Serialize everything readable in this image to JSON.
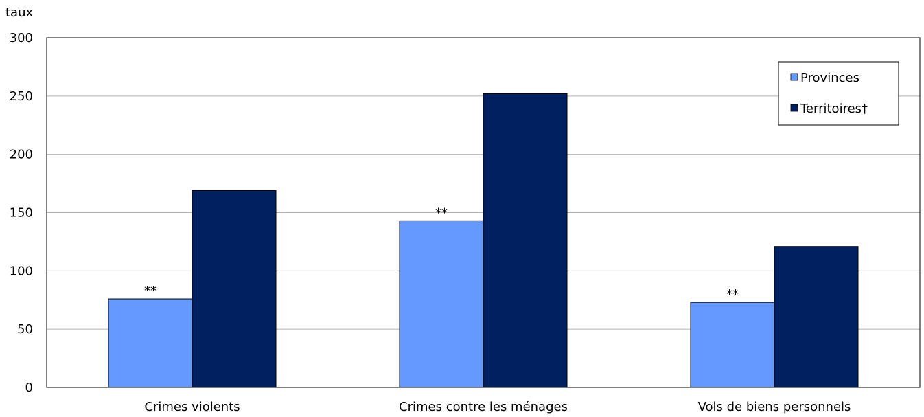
{
  "chart_data": {
    "type": "bar",
    "title": "",
    "xlabel": "",
    "ylabel": "taux",
    "ylim": [
      0,
      300
    ],
    "yticks": [
      0,
      50,
      100,
      150,
      200,
      250,
      300
    ],
    "grid": true,
    "legend_position": "top-right",
    "categories": [
      "Crimes violents",
      "Crimes contre les ménages",
      "Vols de biens personnels"
    ],
    "series": [
      {
        "name": "Provinces",
        "color": "#6699ff",
        "values": [
          76,
          143,
          73
        ],
        "annotations": [
          "**",
          "**",
          "**"
        ]
      },
      {
        "name": "Territoires†",
        "color": "#002060",
        "values": [
          169,
          252,
          121
        ],
        "annotations": [
          "",
          "",
          ""
        ]
      }
    ]
  }
}
